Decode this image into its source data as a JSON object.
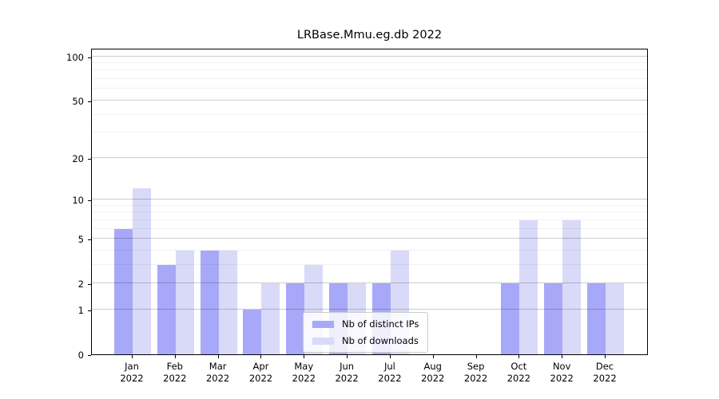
{
  "title": "LRBase.Mmu.eg.db 2022",
  "chart_data": {
    "type": "bar",
    "title": "LRBase.Mmu.eg.db 2022",
    "categories": [
      "Jan",
      "Feb",
      "Mar",
      "Apr",
      "May",
      "Jun",
      "Jul",
      "Aug",
      "Sep",
      "Oct",
      "Nov",
      "Dec"
    ],
    "year_label": "2022",
    "series": [
      {
        "name": "Nb of distinct IPs",
        "color": "#a8a8f8",
        "values": [
          6,
          3,
          4,
          1,
          2,
          2,
          2,
          0,
          0,
          2,
          2,
          2
        ]
      },
      {
        "name": "Nb of downloads",
        "color": "#d9d9f8",
        "values": [
          12,
          4,
          4,
          2,
          3,
          2,
          4,
          0,
          0,
          7,
          7,
          2
        ]
      }
    ],
    "yscale": "log1p",
    "ylim": [
      0,
      114
    ],
    "y_major_ticks": [
      0,
      1,
      2,
      5,
      10,
      20,
      50,
      100
    ],
    "y_minor_ticks": [
      3,
      4,
      6,
      7,
      8,
      9,
      30,
      40,
      60,
      70,
      80,
      90
    ],
    "grid": true,
    "xlabel": "",
    "ylabel": "",
    "legend": {
      "position": "lower center",
      "entries": [
        "Nb of distinct IPs",
        "Nb of downloads"
      ]
    },
    "colors": {
      "frame": "#000000",
      "bar_dark": "#a8a8f8",
      "bar_light": "#d9d9f8"
    }
  }
}
